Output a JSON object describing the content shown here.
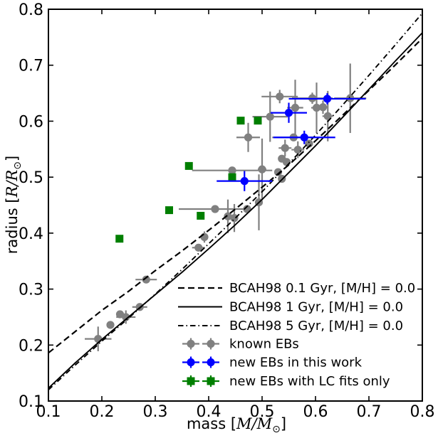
{
  "figure": {
    "title": "",
    "background": "#ffffff",
    "frame_color": "#000000"
  },
  "chart_data": {
    "type": "scatter",
    "title": "",
    "xlabel": "mass [M/M⊙]",
    "ylabel": "radius [R/R⊙]",
    "xlabel_parts": {
      "prefix": "mass [",
      "math": "M/M",
      "sub": "⊙",
      "suffix": "]"
    },
    "ylabel_parts": {
      "prefix": "radius [",
      "math": "R/R",
      "sub": "⊙",
      "suffix": "]"
    },
    "xlim": [
      0.1,
      0.8
    ],
    "ylim": [
      0.1,
      0.8
    ],
    "xticks": [
      0.1,
      0.2,
      0.3,
      0.4,
      0.5,
      0.6,
      0.7,
      0.8
    ],
    "yticks": [
      0.1,
      0.2,
      0.3,
      0.4,
      0.5,
      0.6,
      0.7,
      0.8
    ],
    "grid": false,
    "legend_position": "lower right",
    "colors": {
      "known": "#808080",
      "new": "#0000ff",
      "lc_only": "#007f00",
      "curves": "#000000"
    },
    "curves": [
      {
        "name": "BCAH98 0.1 Gyr, [M/H] = 0.0",
        "style": "dashed",
        "x": [
          0.1,
          0.15,
          0.2,
          0.25,
          0.3,
          0.35,
          0.4,
          0.45,
          0.5,
          0.55,
          0.6,
          0.65,
          0.7,
          0.75,
          0.8
        ],
        "y": [
          0.186,
          0.224,
          0.262,
          0.296,
          0.333,
          0.368,
          0.405,
          0.443,
          0.482,
          0.522,
          0.565,
          0.61,
          0.655,
          0.701,
          0.748
        ]
      },
      {
        "name": "BCAH98 1 Gyr, [M/H] = 0.0",
        "style": "solid",
        "x": [
          0.1,
          0.15,
          0.2,
          0.25,
          0.3,
          0.35,
          0.4,
          0.45,
          0.5,
          0.55,
          0.6,
          0.65,
          0.7,
          0.75,
          0.8
        ],
        "y": [
          0.123,
          0.168,
          0.21,
          0.25,
          0.29,
          0.33,
          0.372,
          0.415,
          0.46,
          0.508,
          0.556,
          0.606,
          0.657,
          0.708,
          0.758
        ]
      },
      {
        "name": "BCAH98 5 Gyr, [M/H] = 0.0",
        "style": "dashdot",
        "x": [
          0.1,
          0.15,
          0.2,
          0.25,
          0.3,
          0.35,
          0.4,
          0.45,
          0.5,
          0.55,
          0.6,
          0.65,
          0.7,
          0.75,
          0.8
        ],
        "y": [
          0.12,
          0.164,
          0.207,
          0.248,
          0.291,
          0.335,
          0.381,
          0.427,
          0.474,
          0.524,
          0.575,
          0.628,
          0.682,
          0.737,
          0.793
        ]
      }
    ],
    "series": [
      {
        "name": "known EBs",
        "marker": "circle",
        "color": "#808080",
        "points": [
          {
            "m": 0.193,
            "r": 0.211,
            "xerr": 0.025,
            "yerr": 0.022
          },
          {
            "m": 0.216,
            "r": 0.236,
            "xerr": 0.006,
            "yerr": 0.006
          },
          {
            "m": 0.234,
            "r": 0.255,
            "xerr": 0.006,
            "yerr": 0.006
          },
          {
            "m": 0.245,
            "r": 0.25,
            "xerr": 0.018,
            "yerr": 0.012
          },
          {
            "m": 0.271,
            "r": 0.268,
            "xerr": 0.014,
            "yerr": 0.006
          },
          {
            "m": 0.283,
            "r": 0.317,
            "xerr": 0.02,
            "yerr": 0.006
          },
          {
            "m": 0.381,
            "r": 0.374,
            "xerr": 0.012,
            "yerr": 0.006
          },
          {
            "m": 0.392,
            "r": 0.393,
            "xerr": 0.006,
            "yerr": 0.01
          },
          {
            "m": 0.412,
            "r": 0.443,
            "xerr": 0.068,
            "yerr": 0.006
          },
          {
            "m": 0.436,
            "r": 0.43,
            "xerr": 0.006,
            "yerr": 0.03
          },
          {
            "m": 0.448,
            "r": 0.427,
            "xerr": 0.006,
            "yerr": 0.025
          },
          {
            "m": 0.472,
            "r": 0.443,
            "xerr": 0.006,
            "yerr": 0.006
          },
          {
            "m": 0.494,
            "r": 0.455,
            "xerr": 0.006,
            "yerr": 0.05
          },
          {
            "m": 0.444,
            "r": 0.512,
            "xerr": 0.075,
            "yerr": 0.006
          },
          {
            "m": 0.5,
            "r": 0.514,
            "xerr": 0.008,
            "yerr": 0.055
          },
          {
            "m": 0.474,
            "r": 0.571,
            "xerr": 0.022,
            "yerr": 0.026
          },
          {
            "m": 0.515,
            "r": 0.608,
            "xerr": 0.033,
            "yerr": 0.045
          },
          {
            "m": 0.533,
            "r": 0.644,
            "xerr": 0.034,
            "yerr": 0.012
          },
          {
            "m": 0.562,
            "r": 0.624,
            "xerr": 0.015,
            "yerr": 0.05
          },
          {
            "m": 0.53,
            "r": 0.509,
            "xerr": 0.006,
            "yerr": 0.006
          },
          {
            "m": 0.537,
            "r": 0.497,
            "xerr": 0.006,
            "yerr": 0.006
          },
          {
            "m": 0.537,
            "r": 0.533,
            "xerr": 0.006,
            "yerr": 0.006
          },
          {
            "m": 0.546,
            "r": 0.527,
            "xerr": 0.006,
            "yerr": 0.006
          },
          {
            "m": 0.543,
            "r": 0.552,
            "xerr": 0.012,
            "yerr": 0.015
          },
          {
            "m": 0.567,
            "r": 0.549,
            "xerr": 0.012,
            "yerr": 0.015
          },
          {
            "m": 0.559,
            "r": 0.571,
            "xerr": 0.04,
            "yerr": 0.006
          },
          {
            "m": 0.588,
            "r": 0.56,
            "xerr": 0.006,
            "yerr": 0.006
          },
          {
            "m": 0.594,
            "r": 0.641,
            "xerr": 0.038,
            "yerr": 0.01
          },
          {
            "m": 0.602,
            "r": 0.624,
            "xerr": 0.01,
            "yerr": 0.045
          },
          {
            "m": 0.614,
            "r": 0.625,
            "xerr": 0.01,
            "yerr": 0.012
          },
          {
            "m": 0.623,
            "r": 0.609,
            "xerr": 0.01,
            "yerr": 0.045
          },
          {
            "m": 0.665,
            "r": 0.641,
            "xerr": 0.03,
            "yerr": 0.062
          }
        ]
      },
      {
        "name": "new EBs in this work",
        "marker": "circle",
        "color": "#0000ff",
        "points": [
          {
            "m": 0.467,
            "r": 0.493,
            "xerr": 0.052,
            "yerr": 0.018
          },
          {
            "m": 0.55,
            "r": 0.615,
            "xerr": 0.034,
            "yerr": 0.018
          },
          {
            "m": 0.579,
            "r": 0.571,
            "xerr": 0.058,
            "yerr": 0.012
          },
          {
            "m": 0.622,
            "r": 0.64,
            "xerr": 0.072,
            "yerr": 0.01
          }
        ]
      },
      {
        "name": "new EBs with LC fits only",
        "marker": "square",
        "color": "#007f00",
        "points": [
          {
            "m": 0.233,
            "r": 0.39,
            "xerr": 0,
            "yerr": 0
          },
          {
            "m": 0.326,
            "r": 0.441,
            "xerr": 0,
            "yerr": 0
          },
          {
            "m": 0.385,
            "r": 0.431,
            "xerr": 0,
            "yerr": 0
          },
          {
            "m": 0.363,
            "r": 0.52,
            "xerr": 0,
            "yerr": 0
          },
          {
            "m": 0.444,
            "r": 0.5,
            "xerr": 0,
            "yerr": 0
          },
          {
            "m": 0.46,
            "r": 0.601,
            "xerr": 0,
            "yerr": 0
          },
          {
            "m": 0.492,
            "r": 0.601,
            "xerr": 0,
            "yerr": 0
          }
        ]
      }
    ],
    "legend": {
      "entries": [
        {
          "type": "line",
          "style": "dashed",
          "color": "#000000",
          "label": "BCAH98 0.1 Gyr, [M/H] = 0.0"
        },
        {
          "type": "line",
          "style": "solid",
          "color": "#000000",
          "label": "BCAH98 1 Gyr, [M/H] = 0.0"
        },
        {
          "type": "line",
          "style": "dashdot",
          "color": "#000000",
          "label": "BCAH98 5 Gyr, [M/H] = 0.0"
        },
        {
          "type": "marker",
          "marker": "circle",
          "color": "#808080",
          "label": "known EBs"
        },
        {
          "type": "marker",
          "marker": "circle",
          "color": "#0000ff",
          "label": "new EBs in this work"
        },
        {
          "type": "marker",
          "marker": "square",
          "color": "#007f00",
          "label": "new EBs with LC fits only"
        }
      ]
    }
  }
}
